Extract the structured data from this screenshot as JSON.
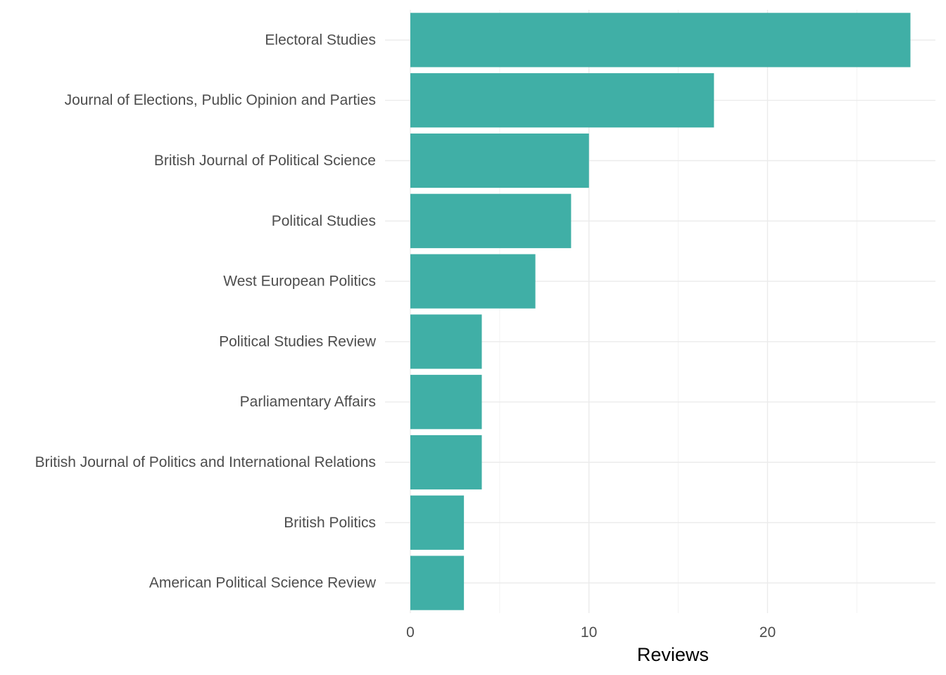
{
  "chart_data": {
    "type": "bar",
    "orientation": "horizontal",
    "categories": [
      "Electoral Studies",
      "Journal of Elections, Public Opinion and Parties",
      "British Journal of Political Science",
      "Political Studies",
      "West European Politics",
      "Political Studies Review",
      "Parliamentary Affairs",
      "British Journal of Politics and International Relations",
      "British Politics",
      "American Political Science Review"
    ],
    "values": [
      28,
      17,
      10,
      9,
      7,
      4,
      4,
      4,
      3,
      3
    ],
    "xlabel": "Reviews",
    "ylabel": "",
    "xlim": [
      0,
      29.4
    ],
    "x_ticks": [
      0,
      10,
      20
    ],
    "x_tick_labels": [
      "0",
      "10",
      "20"
    ],
    "grid": true,
    "legend": "none",
    "bar_color": "#40afa6"
  }
}
